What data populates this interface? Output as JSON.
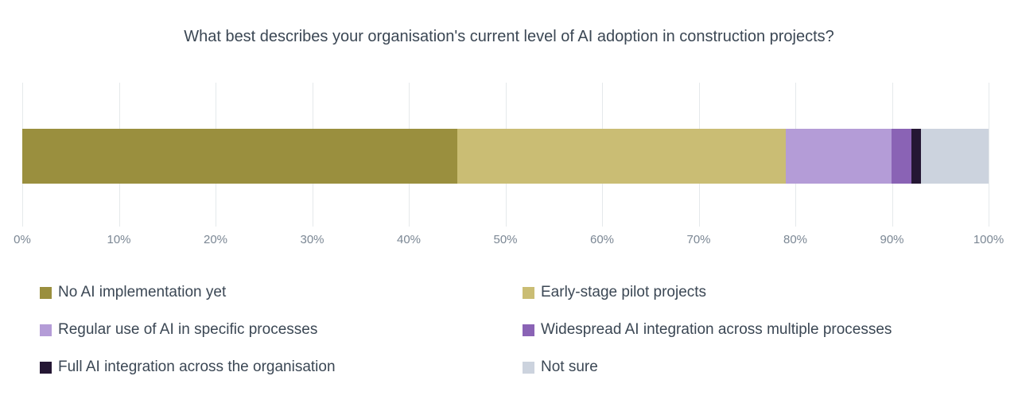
{
  "chart_data": {
    "type": "bar",
    "orientation": "horizontal-stacked",
    "title": "What best describes your organisation's current level of AI adoption in construction projects?",
    "categories": [
      "No AI implementation yet",
      "Early-stage pilot projects",
      "Regular use of AI in specific processes",
      "Widespread AI integration across multiple processes",
      "Full AI integration across the organisation",
      "Not sure"
    ],
    "values": [
      45,
      34,
      11,
      2,
      1,
      7
    ],
    "unit": "%",
    "colors": [
      "#9a8f3e",
      "#cabd74",
      "#b49cd7",
      "#8a63b5",
      "#251734",
      "#ccd3de"
    ],
    "xlabel": "",
    "ylabel": "",
    "xlim": [
      0,
      100
    ],
    "x_ticks": [
      "0%",
      "10%",
      "20%",
      "30%",
      "40%",
      "50%",
      "60%",
      "70%",
      "80%",
      "90%",
      "100%"
    ],
    "grid": true,
    "legend_position": "bottom",
    "legend_columns": 2
  },
  "style_colors": {
    "background": "#ffffff",
    "title_text": "#3b4754",
    "tick_text": "#7b8794",
    "gridline": "#e5e9eb",
    "legend_text": "#3b4754"
  }
}
